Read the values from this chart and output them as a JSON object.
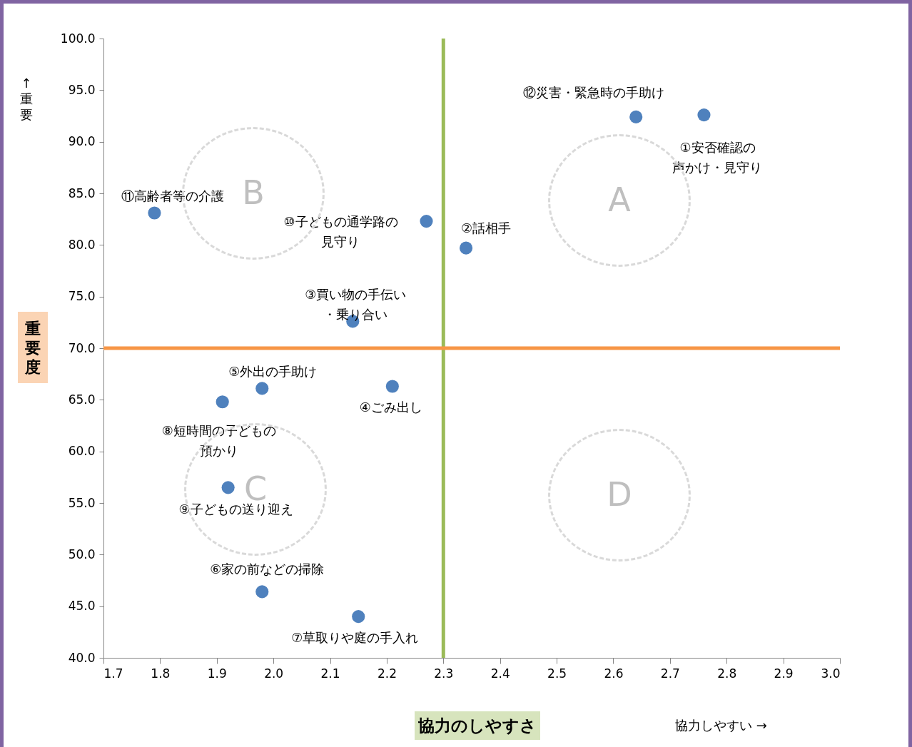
{
  "chart_data": {
    "type": "scatter",
    "xlabel": "協力のしやすさ",
    "ylabel": "重要度",
    "xlim": [
      1.7,
      3.0
    ],
    "xticks": [
      1.7,
      1.8,
      1.9,
      {
        "value": 2,
        "label": "2.0"
      },
      2.1,
      2.2,
      2.3,
      2.4,
      2.5,
      2.6,
      2.7,
      2.8,
      2.9,
      {
        "value": 3,
        "label": "3.0"
      }
    ],
    "ylim": [
      40,
      100
    ],
    "yticks": [
      {
        "value": 40,
        "label": "40.0"
      },
      {
        "value": 45,
        "label": "45.0"
      },
      {
        "value": 50,
        "label": "50.0"
      },
      {
        "value": 55,
        "label": "55.0"
      },
      {
        "value": 60,
        "label": "60.0"
      },
      {
        "value": 65,
        "label": "65.0"
      },
      {
        "value": 70,
        "label": "70.0"
      },
      {
        "value": 75,
        "label": "75.0"
      },
      {
        "value": 80,
        "label": "80.0"
      },
      {
        "value": 85,
        "label": "85.0"
      },
      {
        "value": 90,
        "label": "90.0"
      },
      {
        "value": 95,
        "label": "95.0"
      },
      {
        "value": 100,
        "label": "100.0"
      }
    ],
    "marker": "circle",
    "series": [
      {
        "name": "①安否確認の声かけ・見守り",
        "color": "#4f81bd",
        "x": [
          2.76
        ],
        "values": [
          92.6
        ]
      },
      {
        "name": "②話相手",
        "color": "#4f81bd",
        "x": [
          2.34
        ],
        "values": [
          79.7
        ]
      },
      {
        "name": "③買い物の手伝い・乗り合い",
        "color": "#4f81bd",
        "x": [
          2.14
        ],
        "values": [
          72.6
        ]
      },
      {
        "name": "④ごみ出し",
        "color": "#4f81bd",
        "x": [
          2.21
        ],
        "values": [
          66.3
        ]
      },
      {
        "name": "⑤外出の手助け",
        "color": "#4f81bd",
        "x": [
          1.98
        ],
        "values": [
          66.1
        ]
      },
      {
        "name": "⑥家の前などの掃除",
        "color": "#4f81bd",
        "x": [
          1.98
        ],
        "values": [
          46.4
        ]
      },
      {
        "name": "⑦草取りや庭の手入れ",
        "color": "#4f81bd",
        "x": [
          2.15
        ],
        "values": [
          44.0
        ]
      },
      {
        "name": "⑧短時間の子どもの預かり",
        "color": "#4f81bd",
        "x": [
          1.91
        ],
        "values": [
          64.8
        ]
      },
      {
        "name": "⑨子どもの送り迎え",
        "color": "#4f81bd",
        "x": [
          1.92
        ],
        "values": [
          56.5
        ]
      },
      {
        "name": "⑩子どもの通学路の見守り",
        "color": "#4f81bd",
        "x": [
          2.27
        ],
        "values": [
          82.3
        ]
      },
      {
        "name": "⑪高齢者等の介護",
        "color": "#4f81bd",
        "x": [
          1.79
        ],
        "values": [
          83.1
        ]
      },
      {
        "name": "⑫災害・緊急時の手助け",
        "color": "#4f81bd",
        "x": [
          2.64
        ],
        "values": [
          92.4
        ]
      }
    ],
    "ref_lines": [
      {
        "axis": "x",
        "value": 2.3,
        "color": "#9bbb59"
      },
      {
        "axis": "y",
        "value": 70,
        "color": "#f79646"
      }
    ],
    "annotations": [
      "A",
      "B",
      "C",
      "D",
      "↑ 重要",
      "協力しやすい →"
    ]
  }
}
